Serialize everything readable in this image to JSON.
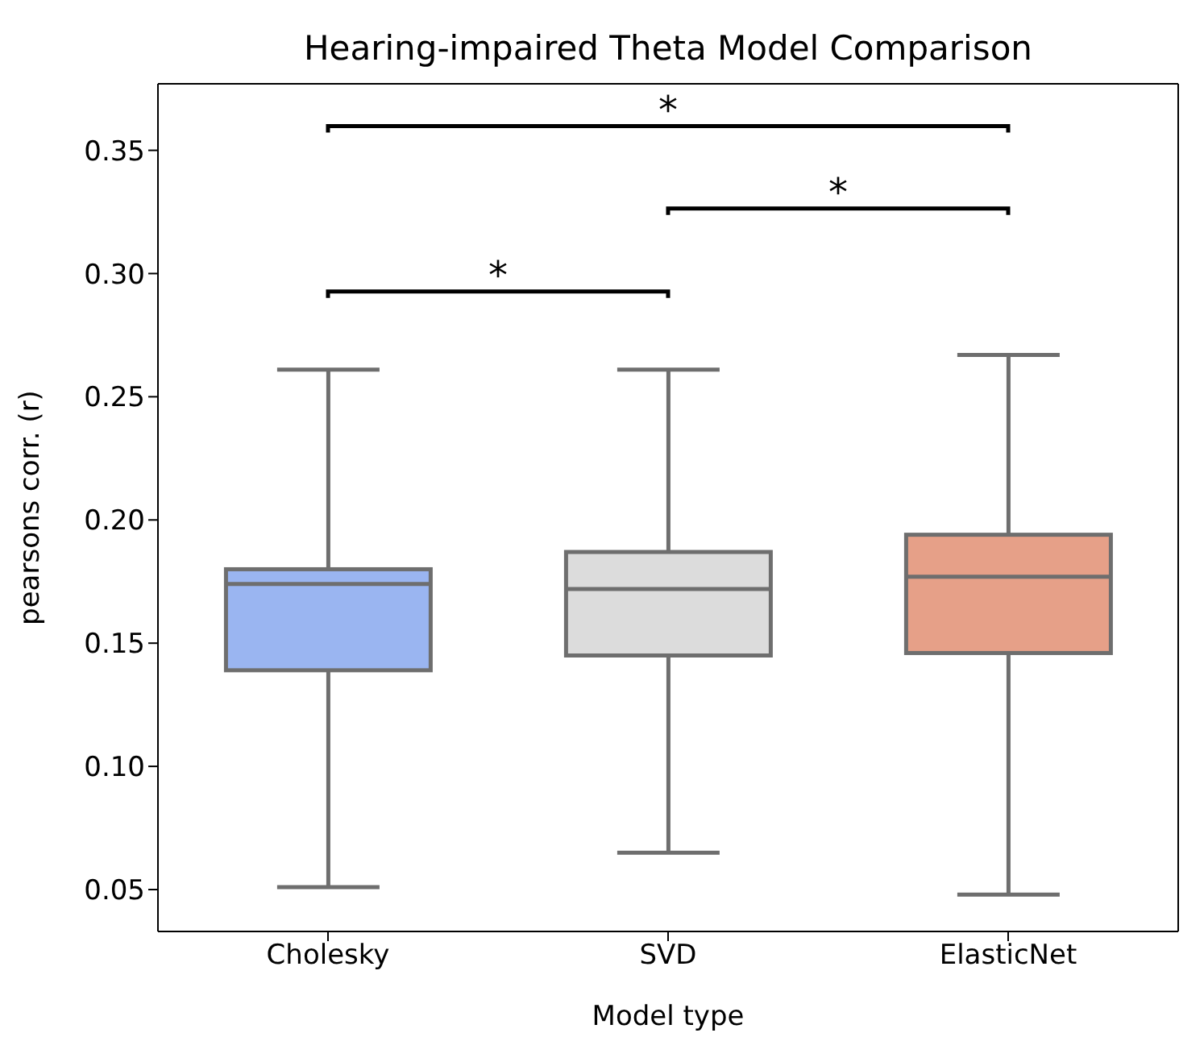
{
  "chart_data": {
    "type": "box",
    "title": "Hearing-impaired Theta Model Comparison",
    "xlabel": "Model type",
    "ylabel": "pearsons corr. (r)",
    "categories": [
      "Cholesky",
      "SVD",
      "ElasticNet"
    ],
    "colors": [
      "#9ab5f1",
      "#dcdcdc",
      "#e6a088"
    ],
    "boxes": [
      {
        "low": 0.051,
        "q1": 0.139,
        "median": 0.174,
        "q3": 0.18,
        "high": 0.261
      },
      {
        "low": 0.065,
        "q1": 0.145,
        "median": 0.172,
        "q3": 0.187,
        "high": 0.261
      },
      {
        "low": 0.048,
        "q1": 0.146,
        "median": 0.177,
        "q3": 0.194,
        "high": 0.267
      }
    ],
    "ylim": [
      0.033,
      0.377
    ],
    "yticks": [
      {
        "value": 0.05,
        "label": "0.05"
      },
      {
        "value": 0.1,
        "label": "0.10"
      },
      {
        "value": 0.15,
        "label": "0.15"
      },
      {
        "value": 0.2,
        "label": "0.20"
      },
      {
        "value": 0.25,
        "label": "0.25"
      },
      {
        "value": 0.3,
        "label": "0.30"
      },
      {
        "value": 0.35,
        "label": "0.35"
      }
    ],
    "annotations": [
      "*",
      "*",
      "*"
    ],
    "grid": false,
    "legend": false
  }
}
